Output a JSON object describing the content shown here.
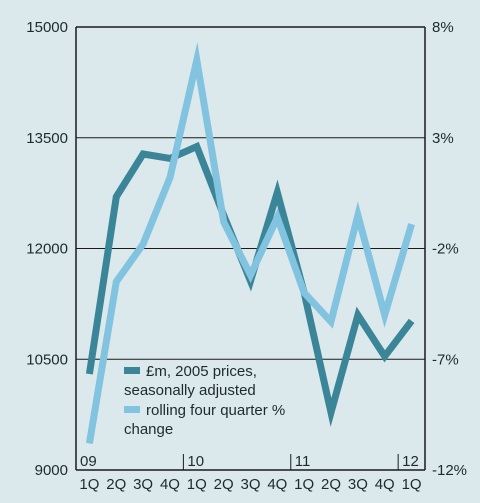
{
  "chart_data": {
    "type": "line",
    "categories": [
      "1Q",
      "2Q",
      "3Q",
      "4Q",
      "1Q",
      "2Q",
      "3Q",
      "4Q",
      "1Q",
      "2Q",
      "3Q",
      "4Q",
      "1Q"
    ],
    "year_labels": [
      {
        "index": 0,
        "label": "09"
      },
      {
        "index": 4,
        "label": "10"
      },
      {
        "index": 8,
        "label": "11"
      },
      {
        "index": 12,
        "label": "12"
      }
    ],
    "y_left": {
      "min": 9000,
      "max": 15000,
      "ticks": [
        "9000",
        "10500",
        "12000",
        "13500",
        "15000"
      ]
    },
    "y_right": {
      "min": -12,
      "max": 8,
      "ticks": [
        "-12%",
        "-7%",
        "-2%",
        "3%",
        "8%"
      ]
    },
    "grid": "horizontal",
    "series": [
      {
        "name": "£m, 2005 prices, seasonally adjusted",
        "axis": "left",
        "color": "#3a8597",
        "values": [
          10300,
          12700,
          13280,
          13220,
          13380,
          12450,
          11560,
          12760,
          11400,
          9780,
          11100,
          10540,
          11020
        ]
      },
      {
        "name": "rolling four quarter % change",
        "axis": "right",
        "color": "#82c3df",
        "values": [
          -10.8,
          -3.5,
          -1.8,
          1.2,
          6.5,
          -0.8,
          -3.2,
          -0.6,
          -4.0,
          -5.3,
          -0.5,
          -5.0,
          -0.9
        ]
      }
    ],
    "legend": {
      "position": "bottom-left",
      "items": [
        {
          "lines": [
            "£m, 2005 prices,",
            "seasonally adjusted"
          ],
          "series": 0
        },
        {
          "lines": [
            "rolling four quarter %",
            "change"
          ],
          "series": 1
        }
      ]
    }
  }
}
